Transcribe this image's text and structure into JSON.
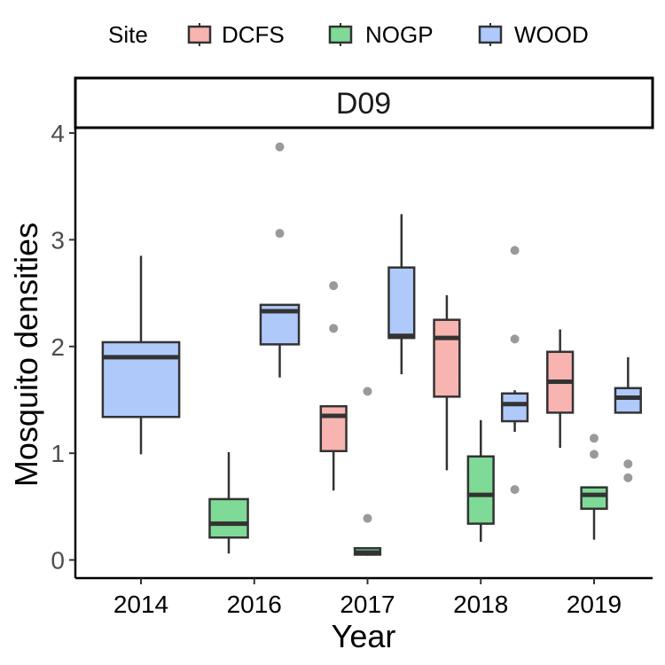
{
  "legend": {
    "title": "Site",
    "items": [
      {
        "label": "DCFS",
        "color": "#f8b4b0"
      },
      {
        "label": "NOGP",
        "color": "#7fda97"
      },
      {
        "label": "WOOD",
        "color": "#afc9fb"
      }
    ]
  },
  "panel": {
    "strip_label": "D09"
  },
  "chart_data": {
    "type": "box",
    "xlabel": "Year",
    "ylabel": "Mosquito densities",
    "categories": [
      "2014",
      "2016",
      "2017",
      "2018",
      "2019"
    ],
    "ylim": [
      -0.17,
      4.05
    ],
    "yticks": [
      0,
      1,
      2,
      3,
      4
    ],
    "series": [
      {
        "name": "DCFS",
        "color": "#f8b4b0",
        "boxes": [
          {
            "category": "2017",
            "whisker_low": 0.65,
            "q1": 1.02,
            "median": 1.35,
            "q3": 1.44,
            "whisker_high": 1.44,
            "outliers": [
              2.17,
              2.57
            ]
          },
          {
            "category": "2018",
            "whisker_low": 0.84,
            "q1": 1.53,
            "median": 2.08,
            "q3": 2.25,
            "whisker_high": 2.48,
            "outliers": []
          },
          {
            "category": "2019",
            "whisker_low": 1.05,
            "q1": 1.38,
            "median": 1.67,
            "q3": 1.95,
            "whisker_high": 2.16,
            "outliers": []
          }
        ]
      },
      {
        "name": "NOGP",
        "color": "#7fda97",
        "boxes": [
          {
            "category": "2016",
            "whisker_low": 0.06,
            "q1": 0.21,
            "median": 0.34,
            "q3": 0.57,
            "whisker_high": 1.01,
            "outliers": []
          },
          {
            "category": "2017",
            "whisker_low": 0.04,
            "q1": 0.05,
            "median": 0.07,
            "q3": 0.11,
            "whisker_high": 0.11,
            "outliers": [
              0.39,
              1.58
            ]
          },
          {
            "category": "2018",
            "whisker_low": 0.17,
            "q1": 0.34,
            "median": 0.61,
            "q3": 0.97,
            "whisker_high": 1.31,
            "outliers": []
          },
          {
            "category": "2019",
            "whisker_low": 0.19,
            "q1": 0.48,
            "median": 0.61,
            "q3": 0.68,
            "whisker_high": 0.68,
            "outliers": [
              0.99,
              1.14
            ]
          }
        ]
      },
      {
        "name": "WOOD",
        "color": "#afc9fb",
        "boxes": [
          {
            "category": "2014",
            "whisker_low": 0.99,
            "q1": 1.34,
            "median": 1.9,
            "q3": 2.04,
            "whisker_high": 2.85,
            "outliers": []
          },
          {
            "category": "2016",
            "whisker_low": 1.71,
            "q1": 2.02,
            "median": 2.33,
            "q3": 2.39,
            "whisker_high": 2.39,
            "outliers": [
              3.06,
              3.87
            ]
          },
          {
            "category": "2017",
            "whisker_low": 1.74,
            "q1": 2.08,
            "median": 2.1,
            "q3": 2.74,
            "whisker_high": 3.24,
            "outliers": []
          },
          {
            "category": "2018",
            "whisker_low": 1.2,
            "q1": 1.3,
            "median": 1.46,
            "q3": 1.56,
            "whisker_high": 1.59,
            "outliers": [
              0.66,
              2.07,
              2.9
            ]
          },
          {
            "category": "2019",
            "whisker_low": 1.38,
            "q1": 1.38,
            "median": 1.52,
            "q3": 1.61,
            "whisker_high": 1.9,
            "outliers": [
              0.77,
              0.9
            ]
          }
        ]
      }
    ]
  }
}
